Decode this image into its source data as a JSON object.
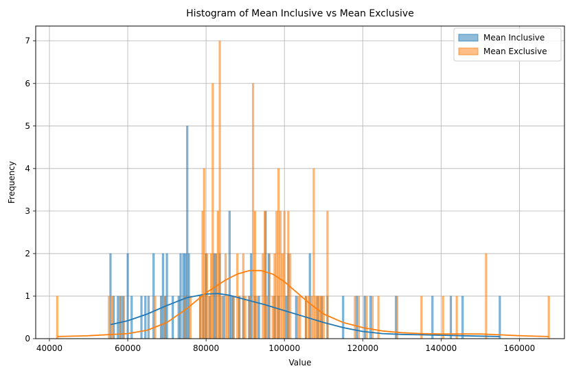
{
  "chart_data": {
    "type": "histogram",
    "title": "Histogram of Mean Inclusive vs Mean Exclusive",
    "xlabel": "Value",
    "ylabel": "Frequency",
    "xlim": [
      36500,
      171500
    ],
    "ylim": [
      0,
      7.35
    ],
    "xticks": [
      40000,
      60000,
      80000,
      100000,
      120000,
      140000,
      160000
    ],
    "xtick_labels": [
      "40000",
      "60000",
      "80000",
      "100000",
      "120000",
      "140000",
      "160000"
    ],
    "yticks": [
      0,
      1,
      2,
      3,
      4,
      5,
      6,
      7
    ],
    "ytick_labels": [
      "0",
      "1",
      "2",
      "3",
      "4",
      "5",
      "6",
      "7"
    ],
    "grid": true,
    "legend_position": "top-right",
    "bin_width": 400,
    "series": [
      {
        "name": "Mean Inclusive",
        "color": "#1f77b4",
        "bins": [
          [
            55600,
            2
          ],
          [
            56400,
            1
          ],
          [
            57500,
            1
          ],
          [
            58200,
            1
          ],
          [
            58800,
            1
          ],
          [
            60000,
            2
          ],
          [
            61000,
            1
          ],
          [
            63500,
            1
          ],
          [
            64500,
            1
          ],
          [
            65300,
            1
          ],
          [
            66600,
            2
          ],
          [
            68500,
            1
          ],
          [
            69000,
            2
          ],
          [
            69600,
            1
          ],
          [
            70000,
            2
          ],
          [
            71500,
            1
          ],
          [
            73000,
            1
          ],
          [
            73500,
            2
          ],
          [
            74200,
            2
          ],
          [
            74700,
            2
          ],
          [
            75200,
            5
          ],
          [
            75600,
            2
          ],
          [
            78500,
            1
          ],
          [
            79300,
            1
          ],
          [
            80000,
            2
          ],
          [
            81000,
            1
          ],
          [
            82000,
            2
          ],
          [
            82500,
            2
          ],
          [
            83500,
            2
          ],
          [
            84500,
            1
          ],
          [
            86000,
            3
          ],
          [
            86500,
            1
          ],
          [
            87000,
            1
          ],
          [
            88500,
            1
          ],
          [
            89500,
            1
          ],
          [
            91000,
            1
          ],
          [
            91500,
            2
          ],
          [
            92500,
            1
          ],
          [
            93500,
            1
          ],
          [
            95200,
            3
          ],
          [
            96000,
            2
          ],
          [
            97500,
            1
          ],
          [
            98500,
            1
          ],
          [
            100500,
            1
          ],
          [
            101000,
            2
          ],
          [
            103000,
            1
          ],
          [
            105500,
            1
          ],
          [
            106500,
            2
          ],
          [
            108500,
            1
          ],
          [
            109500,
            1
          ],
          [
            111000,
            1
          ],
          [
            115000,
            1
          ],
          [
            118500,
            1
          ],
          [
            120500,
            1
          ],
          [
            122000,
            1
          ],
          [
            128500,
            1
          ],
          [
            137800,
            1
          ],
          [
            142500,
            1
          ],
          [
            145500,
            1
          ],
          [
            155000,
            1
          ]
        ],
        "kde": {
          "x": [
            55600,
            60000,
            65000,
            70000,
            75000,
            80000,
            83000,
            86000,
            90000,
            95000,
            100000,
            105000,
            110000,
            115000,
            120000,
            125000,
            130000,
            135000,
            140000,
            145000,
            150000,
            155000
          ],
          "y": [
            0.33,
            0.42,
            0.58,
            0.78,
            0.96,
            1.05,
            1.06,
            1.02,
            0.92,
            0.8,
            0.66,
            0.52,
            0.38,
            0.26,
            0.17,
            0.12,
            0.1,
            0.09,
            0.08,
            0.07,
            0.06,
            0.05
          ]
        }
      },
      {
        "name": "Mean Exclusive",
        "color": "#ff7f0e",
        "bins": [
          [
            42000,
            1
          ],
          [
            55200,
            1
          ],
          [
            56000,
            1
          ],
          [
            58000,
            1
          ],
          [
            59000,
            1
          ],
          [
            67000,
            1
          ],
          [
            69500,
            1
          ],
          [
            74500,
            1
          ],
          [
            76000,
            1
          ],
          [
            78500,
            1
          ],
          [
            79100,
            3
          ],
          [
            79500,
            4
          ],
          [
            80200,
            2
          ],
          [
            80800,
            1
          ],
          [
            81300,
            2
          ],
          [
            81700,
            6
          ],
          [
            82500,
            2
          ],
          [
            83000,
            3
          ],
          [
            83500,
            7
          ],
          [
            84000,
            1
          ],
          [
            85000,
            2
          ],
          [
            85500,
            1
          ],
          [
            87000,
            1
          ],
          [
            88000,
            2
          ],
          [
            88500,
            1
          ],
          [
            89500,
            2
          ],
          [
            90000,
            1
          ],
          [
            91200,
            1
          ],
          [
            92000,
            6
          ],
          [
            92500,
            3
          ],
          [
            93000,
            1
          ],
          [
            94500,
            2
          ],
          [
            95000,
            3
          ],
          [
            95500,
            1
          ],
          [
            96200,
            2
          ],
          [
            97000,
            1
          ],
          [
            97500,
            2
          ],
          [
            98000,
            3
          ],
          [
            98500,
            4
          ],
          [
            99000,
            3
          ],
          [
            99500,
            2
          ],
          [
            100000,
            3
          ],
          [
            101000,
            3
          ],
          [
            101500,
            2
          ],
          [
            103500,
            1
          ],
          [
            104000,
            1
          ],
          [
            105500,
            1
          ],
          [
            106200,
            1
          ],
          [
            107000,
            1
          ],
          [
            107500,
            4
          ],
          [
            108000,
            1
          ],
          [
            108500,
            1
          ],
          [
            109000,
            1
          ],
          [
            109500,
            1
          ],
          [
            110000,
            1
          ],
          [
            111000,
            3
          ],
          [
            118000,
            1
          ],
          [
            119000,
            1
          ],
          [
            121000,
            1
          ],
          [
            122500,
            1
          ],
          [
            124000,
            1
          ],
          [
            128800,
            1
          ],
          [
            135000,
            1
          ],
          [
            140500,
            1
          ],
          [
            144000,
            1
          ],
          [
            151500,
            2
          ],
          [
            167500,
            1
          ]
        ],
        "kde": {
          "x": [
            42000,
            50000,
            60000,
            65000,
            70000,
            75000,
            80000,
            85000,
            88000,
            91000,
            94000,
            97000,
            100000,
            103000,
            106000,
            110000,
            115000,
            120000,
            125000,
            130000,
            135000,
            140000,
            145000,
            150000,
            155000,
            160000,
            167500
          ],
          "y": [
            0.05,
            0.07,
            0.12,
            0.2,
            0.38,
            0.7,
            1.08,
            1.38,
            1.52,
            1.6,
            1.6,
            1.52,
            1.34,
            1.1,
            0.86,
            0.58,
            0.38,
            0.26,
            0.18,
            0.14,
            0.12,
            0.11,
            0.11,
            0.11,
            0.09,
            0.07,
            0.05
          ]
        }
      }
    ]
  }
}
